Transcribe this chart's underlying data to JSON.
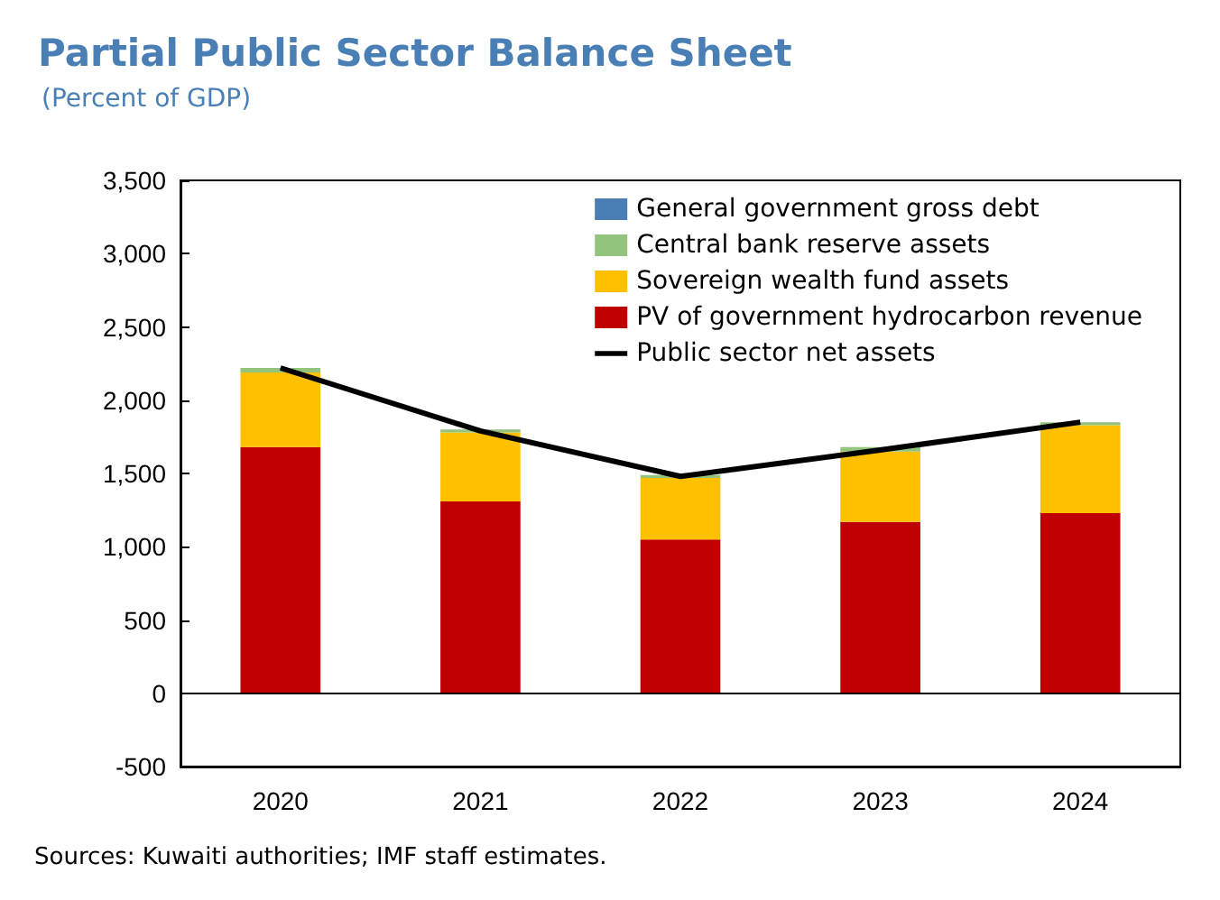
{
  "chart_data": {
    "type": "bar",
    "title": "Partial Public Sector Balance Sheet",
    "subtitle": "(Percent of GDP)",
    "categories": [
      "2020",
      "2021",
      "2022",
      "2023",
      "2024"
    ],
    "stacked": true,
    "series": [
      {
        "name": "PV of government hydrocarbon revenue",
        "color": "#c00000",
        "values": [
          1680,
          1310,
          1050,
          1170,
          1230
        ]
      },
      {
        "name": "Sovereign wealth fund assets",
        "color": "#ffc000",
        "values": [
          510,
          470,
          420,
          480,
          600
        ]
      },
      {
        "name": "Central bank reserve assets",
        "color": "#92c47d",
        "values": [
          30,
          20,
          20,
          30,
          20
        ]
      },
      {
        "name": "General government gross debt",
        "color": "#4a7fb5",
        "values": [
          null,
          null,
          null,
          null,
          null
        ]
      },
      {
        "name": "Public sector net assets",
        "type": "line",
        "color": "#000000",
        "values": [
          2220,
          1790,
          1480,
          1660,
          1850
        ]
      }
    ],
    "ylim": [
      -500,
      3500
    ],
    "yticks": [
      -500,
      0,
      500,
      {
        "value": 1000,
        "label": "1,000"
      },
      {
        "value": 1500,
        "label": "1,500"
      },
      {
        "value": 2000,
        "label": "2,000"
      },
      {
        "value": 2500,
        "label": "2,500"
      },
      {
        "value": 3000,
        "label": "3,000"
      },
      {
        "value": 3500,
        "label": "3,500"
      }
    ],
    "grid": false,
    "legend": "top right",
    "marker": "none",
    "ref_lines": [
      {
        "axis": "y",
        "value": 0,
        "color": "#000000"
      }
    ],
    "annotations": [
      "Sources: Kuwaiti authorities; IMF staff estimates."
    ]
  }
}
